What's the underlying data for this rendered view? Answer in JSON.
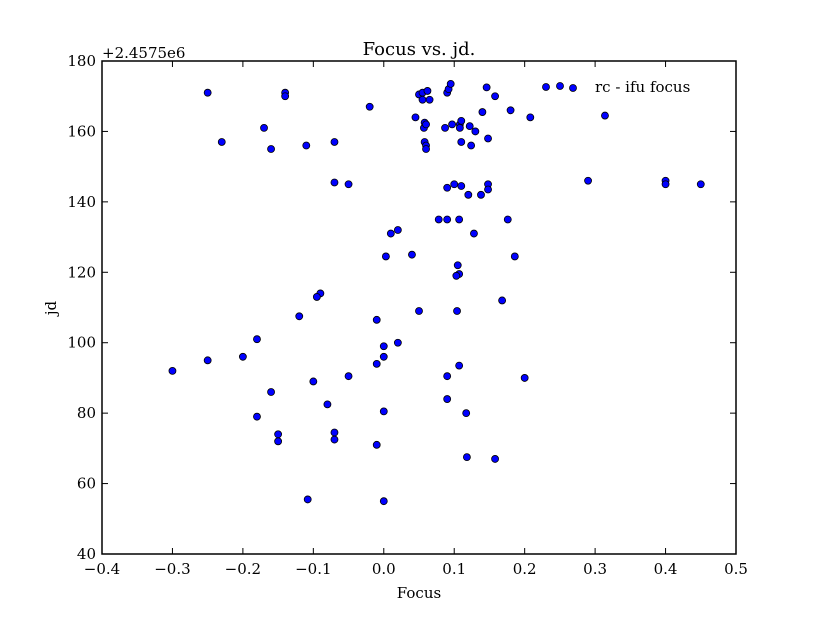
{
  "chart_data": {
    "type": "scatter",
    "title": "Focus vs. jd.",
    "xlabel": "Focus",
    "ylabel": "jd",
    "y_offset_label": "+2.4575e6",
    "xlim": [
      -0.4,
      0.5
    ],
    "ylim": [
      40,
      180
    ],
    "xticks": [
      {
        "value": -0.4,
        "label": "−0.4"
      },
      {
        "value": -0.3,
        "label": "−0.3"
      },
      {
        "value": -0.2,
        "label": "−0.2"
      },
      {
        "value": -0.1,
        "label": "−0.1"
      },
      {
        "value": 0,
        "label": "0.0"
      },
      0.1,
      0.2,
      0.3,
      0.4,
      0.5
    ],
    "yticks": [
      40,
      60,
      80,
      100,
      120,
      140,
      160,
      180
    ],
    "legend": "upper right",
    "series": [
      {
        "name": "rc - ifu focus",
        "color": "#0000ff",
        "x": [
          -0.25,
          -0.14,
          -0.14,
          -0.23,
          -0.17,
          -0.16,
          -0.11,
          -0.07,
          -0.02,
          -0.07,
          -0.05,
          0.045,
          0.05,
          0.055,
          0.055,
          0.065,
          0.062,
          0.057,
          0.058,
          0.06,
          0.058,
          0.06,
          0.06,
          0.09,
          0.092,
          0.095,
          0.087,
          0.097,
          0.108,
          0.108,
          0.11,
          0.122,
          0.13,
          0.124,
          0.11,
          0.14,
          0.146,
          0.158,
          0.18,
          0.148,
          0.208,
          0.314,
          0.09,
          0.1,
          0.11,
          0.12,
          0.138,
          0.148,
          0.148,
          0.078,
          0.09,
          0.107,
          0.176,
          0.128,
          0.01,
          0.02,
          0.003,
          0.04,
          0.105,
          0.107,
          0.103,
          0.186,
          0.29,
          0.4,
          0.4,
          0.45,
          -0.09,
          -0.095,
          -0.12,
          -0.01,
          0.05,
          0.104,
          0.168,
          -0.18,
          0,
          0.02,
          -0.2,
          -0.25,
          -0.3,
          0,
          -0.01,
          0.107,
          -0.05,
          0.09,
          0.2,
          -0.1,
          -0.16,
          -0.08,
          0,
          0.09,
          0.117,
          -0.18,
          -0.15,
          -0.15,
          -0.07,
          -0.07,
          -0.01,
          0.118,
          0.158,
          -0.108,
          0
        ],
        "y": [
          171,
          171,
          170,
          157,
          161,
          155,
          156,
          157,
          167,
          145.5,
          145,
          164,
          170.5,
          171,
          169,
          169,
          171.5,
          161,
          162.5,
          162,
          157,
          156,
          155,
          171,
          172,
          173.5,
          161,
          162,
          162,
          161,
          163,
          161.5,
          160,
          156,
          157,
          165.5,
          172.5,
          170,
          166,
          158,
          164,
          164.5,
          144,
          145,
          144.5,
          142,
          142,
          145,
          143.5,
          135,
          135,
          135,
          135,
          131,
          131,
          132,
          124.5,
          125,
          122,
          119.5,
          119,
          124.5,
          146,
          146,
          145,
          145,
          114,
          113,
          107.5,
          106.5,
          109,
          109,
          112,
          101,
          99,
          100,
          96,
          95,
          92,
          96,
          94,
          93.5,
          90.5,
          90.5,
          90,
          89,
          86,
          82.5,
          80.5,
          84,
          80,
          79,
          74,
          72,
          74.5,
          72.5,
          71,
          67.5,
          67,
          55.5,
          55
        ]
      }
    ]
  }
}
